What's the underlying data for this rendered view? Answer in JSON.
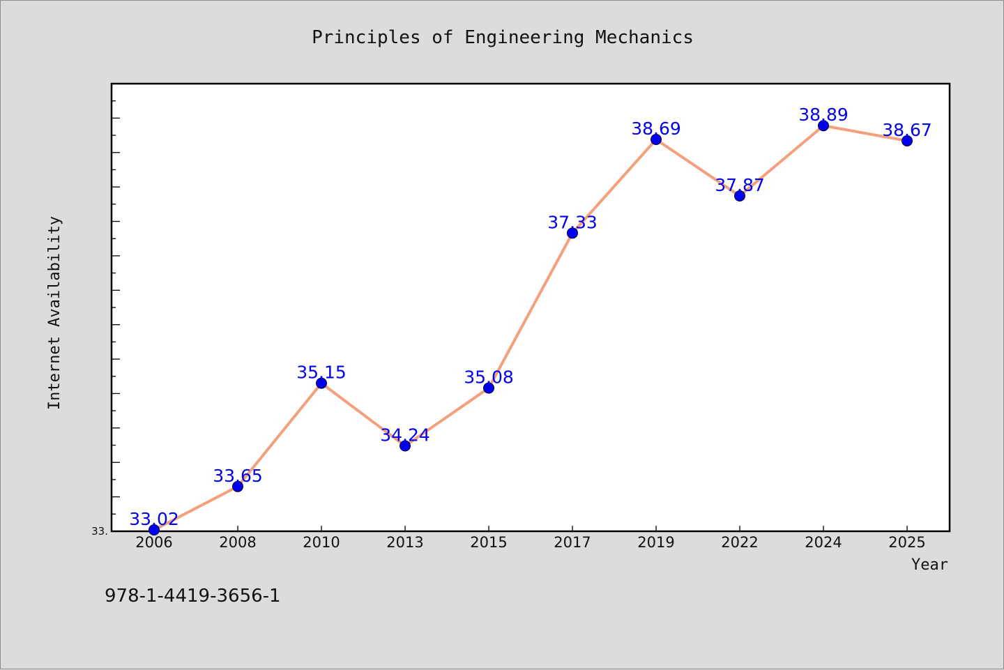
{
  "chart_data": {
    "type": "line",
    "title": "Principles of Engineering Mechanics",
    "xlabel": "Year",
    "ylabel": "Internet Availability",
    "categories": [
      "2006",
      "2008",
      "2010",
      "2013",
      "2015",
      "2017",
      "2019",
      "2022",
      "2024",
      "2025"
    ],
    "series": [
      {
        "values": [
          33.02,
          33.65,
          35.15,
          34.24,
          35.08,
          37.33,
          38.69,
          37.87,
          38.89,
          38.67
        ],
        "labels": [
          "33.02",
          "33.65",
          "35.15",
          "34.24",
          "35.08",
          "37.33",
          "38.69",
          "37.87",
          "38.89",
          "38.67"
        ],
        "line_color": "#f4a07c",
        "marker_color": "#0000ee"
      }
    ],
    "ylim": [
      33.0,
      39.5
    ],
    "y_tick_labels": [
      "33."
    ],
    "grid": false,
    "legend": "none"
  },
  "footnote": "978-1-4419-3656-1"
}
